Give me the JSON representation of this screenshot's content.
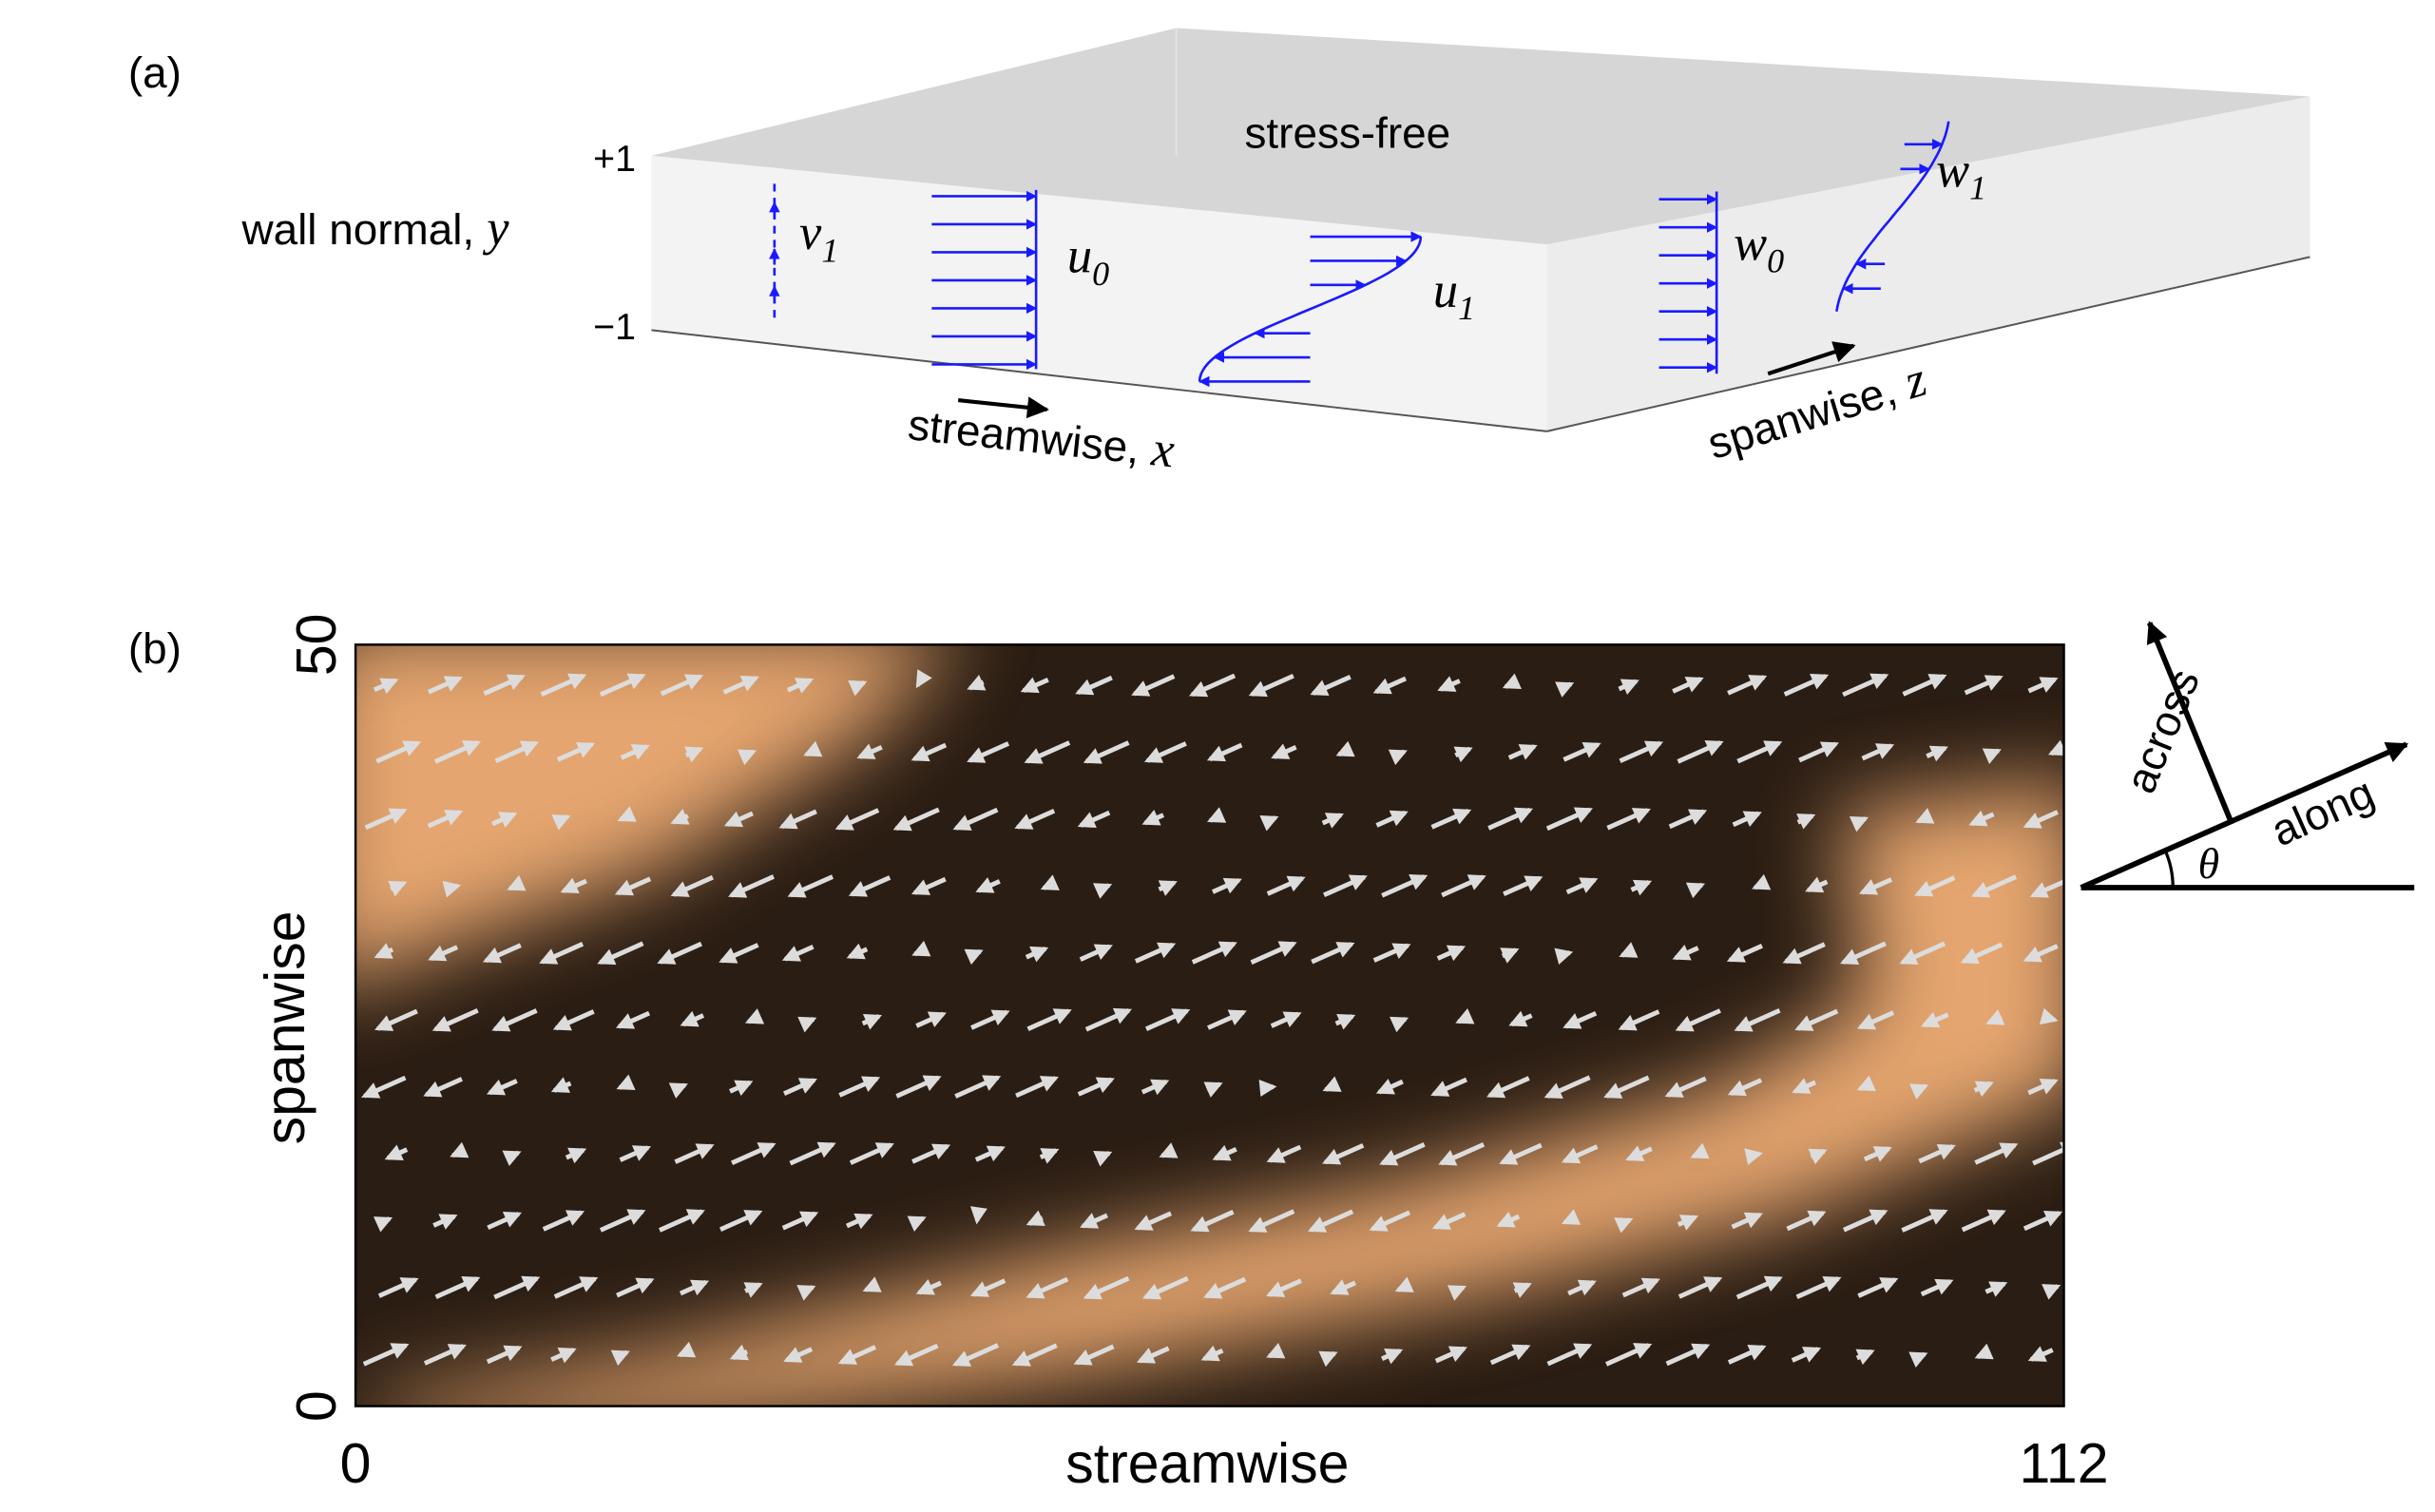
{
  "panel_a": {
    "label": "(a)",
    "top_label": "stress-free",
    "y_ticks": [
      "+1",
      "−1"
    ],
    "wall_normal": {
      "text": "wall normal,",
      "var": "y"
    },
    "streamwise": {
      "text": "streamwise,",
      "var": "x"
    },
    "spanwise": {
      "text": "spanwise,",
      "var": "z"
    },
    "profiles": [
      {
        "base": "v",
        "sub": "1"
      },
      {
        "base": "u",
        "sub": "0"
      },
      {
        "base": "u",
        "sub": "1"
      },
      {
        "base": "w",
        "sub": "0"
      },
      {
        "base": "w",
        "sub": "1"
      }
    ]
  },
  "panel_b": {
    "label": "(b)",
    "xlabel": "streamwise",
    "ylabel": "spanwise",
    "xlim": [
      0,
      112
    ],
    "ylim": [
      0,
      50
    ],
    "xticks": [
      0,
      112
    ],
    "yticks": [
      0,
      50
    ],
    "compass": {
      "across": "across",
      "along": "along",
      "angle": "θ"
    }
  }
}
